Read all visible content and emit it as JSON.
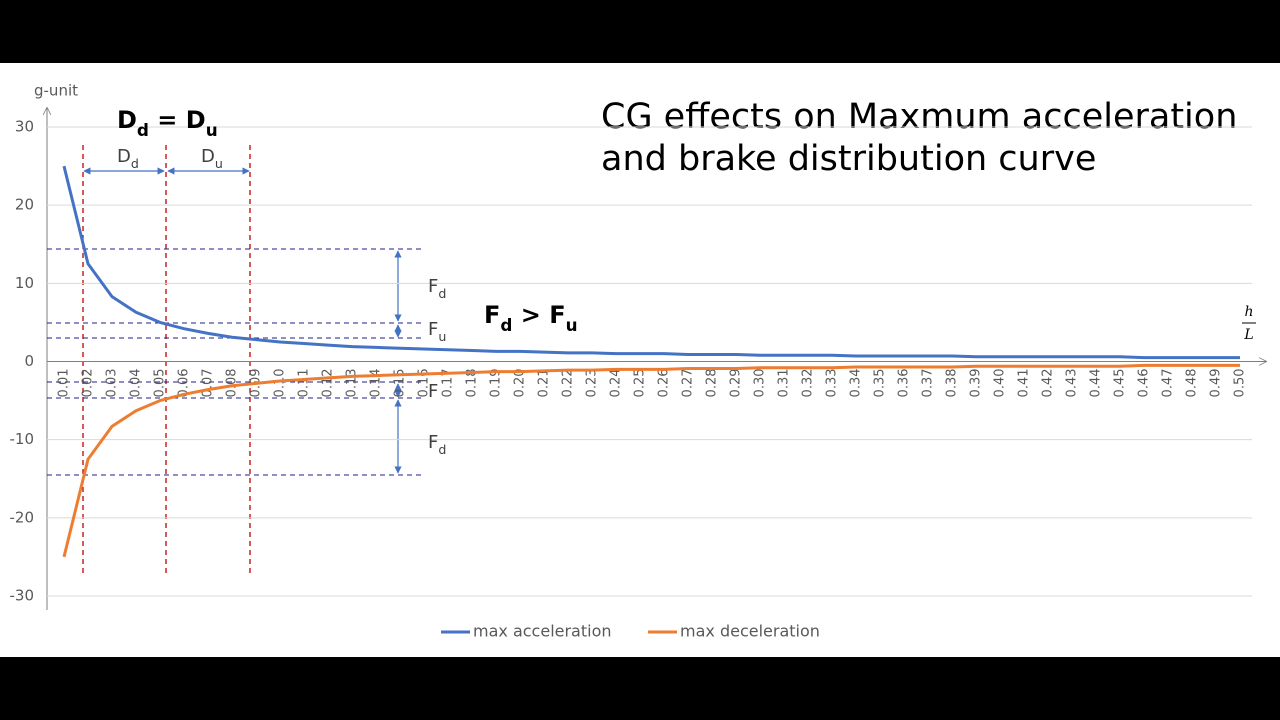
{
  "chart_data": {
    "type": "line",
    "title": [
      "CG effects on Maxmum acceleration",
      "and brake distribution curve"
    ],
    "y_label": "g-unit",
    "x_label": {
      "numerator": "h",
      "denominator": "L"
    },
    "categories": [
      "0.01",
      "0.02",
      "0.03",
      "0.04",
      "0.05",
      "0.06",
      "0.07",
      "0.08",
      "0.09",
      "0.10",
      "0.11",
      "0.12",
      "0.13",
      "0.14",
      "0.15",
      "0.16",
      "0.17",
      "0.18",
      "0.19",
      "0.20",
      "0.21",
      "0.22",
      "0.23",
      "0.24",
      "0.25",
      "0.26",
      "0.27",
      "0.28",
      "0.29",
      "0.30",
      "0.31",
      "0.32",
      "0.33",
      "0.34",
      "0.35",
      "0.36",
      "0.37",
      "0.38",
      "0.39",
      "0.40",
      "0.41",
      "0.42",
      "0.43",
      "0.44",
      "0.45",
      "0.46",
      "0.47",
      "0.48",
      "0.49",
      "0.50"
    ],
    "series": [
      {
        "name": "max acceleration",
        "color": "#4472c4",
        "values": [
          25,
          12.5,
          8.3,
          6.3,
          5,
          4.2,
          3.6,
          3.1,
          2.8,
          2.5,
          2.3,
          2.1,
          1.9,
          1.8,
          1.7,
          1.6,
          1.5,
          1.4,
          1.3,
          1.3,
          1.2,
          1.1,
          1.1,
          1.0,
          1.0,
          1.0,
          0.9,
          0.9,
          0.9,
          0.8,
          0.8,
          0.8,
          0.8,
          0.7,
          0.7,
          0.7,
          0.7,
          0.7,
          0.6,
          0.6,
          0.6,
          0.6,
          0.6,
          0.6,
          0.6,
          0.5,
          0.5,
          0.5,
          0.5,
          0.5
        ]
      },
      {
        "name": "max deceleration",
        "color": "#ed7d31",
        "values": [
          -25,
          -12.5,
          -8.3,
          -6.3,
          -5,
          -4.2,
          -3.6,
          -3.1,
          -2.8,
          -2.5,
          -2.3,
          -2.1,
          -1.9,
          -1.8,
          -1.7,
          -1.6,
          -1.5,
          -1.4,
          -1.3,
          -1.3,
          -1.2,
          -1.1,
          -1.1,
          -1.0,
          -1.0,
          -1.0,
          -0.9,
          -0.9,
          -0.9,
          -0.8,
          -0.8,
          -0.8,
          -0.8,
          -0.7,
          -0.7,
          -0.7,
          -0.7,
          -0.7,
          -0.6,
          -0.6,
          -0.6,
          -0.6,
          -0.6,
          -0.6,
          -0.6,
          -0.5,
          -0.5,
          -0.5,
          -0.5,
          -0.5
        ]
      }
    ],
    "ylim": [
      -30,
      30
    ],
    "yticks": [
      -30,
      -20,
      -10,
      0,
      10,
      20,
      30
    ],
    "grid": true,
    "legend": "bottom",
    "annotations": [
      [
        {
          "text": "D",
          "sub": "d"
        },
        {
          "text": " = "
        },
        {
          "text": "D",
          "sub": "u"
        }
      ],
      [
        {
          "text": "D",
          "sub": "d"
        }
      ],
      [
        {
          "text": "D",
          "sub": "u"
        }
      ],
      [
        {
          "text": "F",
          "sub": "d"
        },
        {
          "text": " > "
        },
        {
          "text": "F",
          "sub": "u"
        }
      ],
      [
        {
          "text": "F",
          "sub": "d"
        }
      ],
      [
        {
          "text": "F",
          "sub": "u"
        }
      ],
      [
        {
          "text": "F"
        }
      ],
      [
        {
          "text": "F",
          "sub": "d"
        }
      ]
    ]
  }
}
